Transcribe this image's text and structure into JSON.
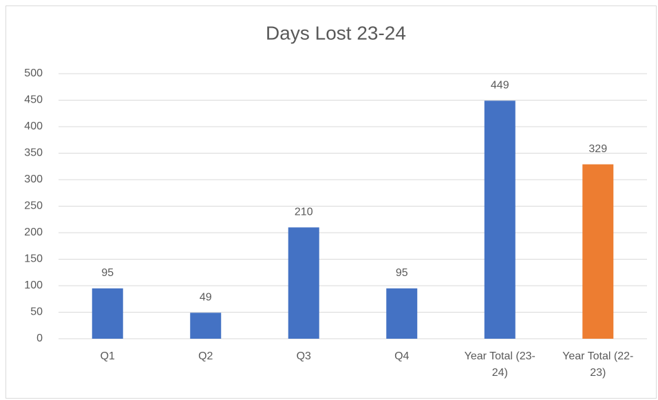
{
  "chart_data": {
    "type": "bar",
    "title": "Days Lost 23-24",
    "categories": [
      "Q1",
      "Q2",
      "Q3",
      "Q4",
      "Year Total (23-24)",
      "Year Total (22-23)"
    ],
    "values": [
      95,
      49,
      210,
      95,
      449,
      329
    ],
    "colors": [
      "#4472c4",
      "#4472c4",
      "#4472c4",
      "#4472c4",
      "#4472c4",
      "#ed7d31"
    ],
    "ylim": [
      0,
      500
    ],
    "yticks": [
      0,
      50,
      100,
      150,
      200,
      250,
      300,
      350,
      400,
      450,
      500
    ],
    "grid": true,
    "data_labels": true
  }
}
